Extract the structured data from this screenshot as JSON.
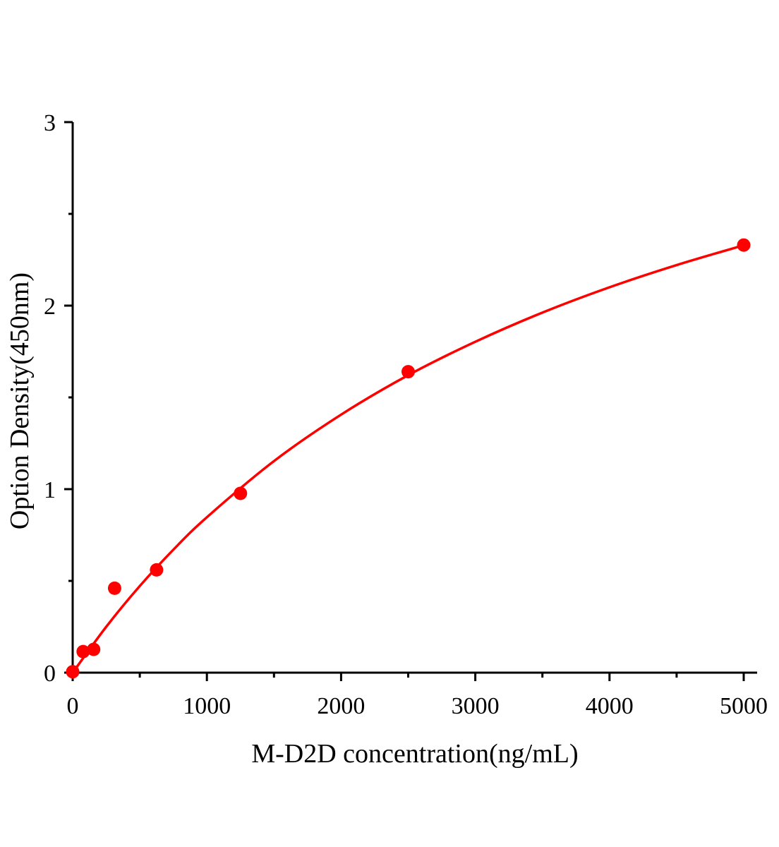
{
  "chart_data": {
    "type": "scatter",
    "title": "",
    "xlabel": "M-D2D concentration(ng/mL)",
    "ylabel": "Option Density(450nm)",
    "xlim": [
      0,
      5000
    ],
    "ylim": [
      0,
      3
    ],
    "x_ticks": [
      0,
      1000,
      2000,
      3000,
      4000,
      5000
    ],
    "x_tick_labels": [
      "0",
      "1000",
      "2000",
      "3000",
      "4000",
      "5000"
    ],
    "x_minor_ticks": [
      500,
      1500,
      2500,
      3500,
      4500
    ],
    "y_ticks": [
      0,
      1,
      2,
      3
    ],
    "y_tick_labels": [
      "0",
      "1",
      "2",
      "3"
    ],
    "y_minor_ticks": [
      0.5,
      1.5,
      2.5
    ],
    "grid": false,
    "legend": "none",
    "color": "#ff0000",
    "points": {
      "x": [
        0,
        78.125,
        156.25,
        312.5,
        625,
        1250,
        2500,
        5000
      ],
      "y": [
        0.005,
        0.115,
        0.127,
        0.46,
        0.56,
        0.977,
        1.64,
        2.33
      ]
    },
    "fit_curve": {
      "x": [
        0,
        250,
        500,
        750,
        1000,
        1500,
        2000,
        2500,
        3000,
        3500,
        4000,
        4500,
        5000
      ],
      "y": [
        0,
        0.25,
        0.472,
        0.67,
        0.847,
        1.153,
        1.406,
        1.621,
        1.803,
        1.962,
        2.1,
        2.221,
        2.329
      ]
    }
  }
}
